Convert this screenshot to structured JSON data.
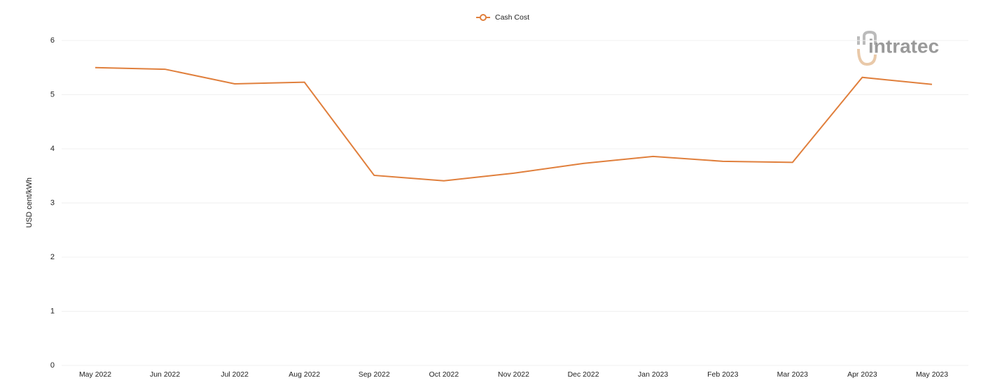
{
  "chart_data": {
    "type": "line",
    "logo": "intratec",
    "y_label": "USD cent/kWh",
    "categories": [
      "May 2022",
      "Jun 2022",
      "Jul 2022",
      "Aug 2022",
      "Sep 2022",
      "Oct 2022",
      "Nov 2022",
      "Dec 2022",
      "Jan 2023",
      "Feb 2023",
      "Mar 2023",
      "Apr 2023",
      "May 2023"
    ],
    "series": [
      {
        "name": "Cash Cost",
        "color": "#e07f3c",
        "values": [
          5.5,
          5.47,
          5.2,
          5.23,
          3.51,
          3.41,
          3.55,
          3.73,
          3.86,
          3.77,
          3.75,
          5.32,
          5.19
        ]
      }
    ],
    "ylim": [
      0,
      6
    ],
    "yticks": [
      0,
      1,
      2,
      3,
      4,
      5,
      6
    ],
    "grid": true,
    "legend": "top"
  }
}
